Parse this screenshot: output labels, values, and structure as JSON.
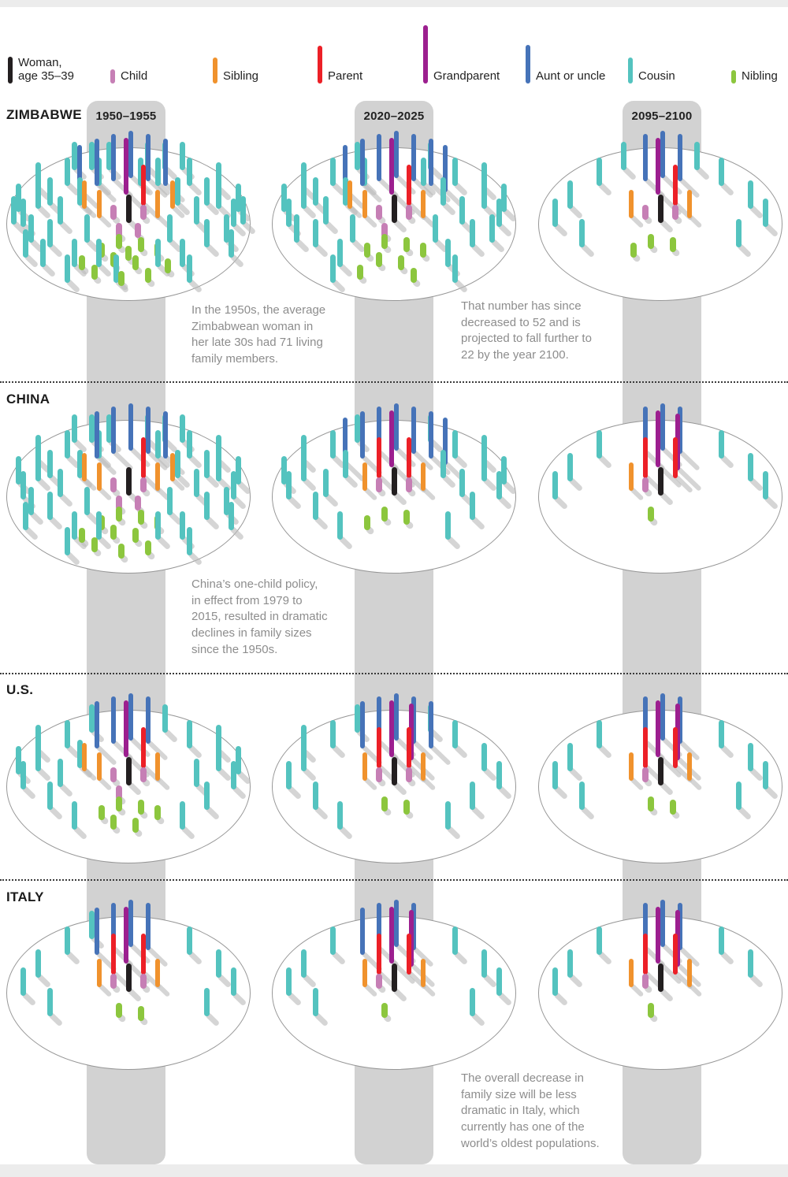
{
  "chart_data": {
    "type": "table",
    "description": "Pictogram of living family members of an average woman aged 35-39, by relation type, for four countries across three time periods",
    "periods": [
      "1950–1955",
      "2020–2025",
      "2095–2100"
    ],
    "legend": [
      {
        "id": "woman",
        "label": "Woman,\nage 35–39",
        "color": "#231f20"
      },
      {
        "id": "child",
        "label": "Child",
        "color": "#c67fb5"
      },
      {
        "id": "sibling",
        "label": "Sibling",
        "color": "#f0922d"
      },
      {
        "id": "parent",
        "label": "Parent",
        "color": "#ec2027"
      },
      {
        "id": "grandparent",
        "label": "Grandparent",
        "color": "#9c1f8f"
      },
      {
        "id": "aunt_uncle",
        "label": "Aunt or uncle",
        "color": "#4673b8"
      },
      {
        "id": "cousin",
        "label": "Cousin",
        "color": "#54c3bf"
      },
      {
        "id": "nibling",
        "label": "Nibling",
        "color": "#8cc63e"
      }
    ],
    "rows": [
      {
        "country": "ZIMBABWE",
        "panels": [
          {
            "period": "1950–1955",
            "total_family_members": 71,
            "counts": {
              "woman": 1,
              "child": 4,
              "sibling": 4,
              "parent": 1,
              "grandparent": 1,
              "aunt_uncle": 6,
              "cousin": 43,
              "nibling": 12
            }
          },
          {
            "period": "2020–2025",
            "total_family_members": 52,
            "counts": {
              "woman": 1,
              "child": 3,
              "sibling": 3,
              "parent": 1,
              "grandparent": 1,
              "aunt_uncle": 7,
              "cousin": 29,
              "nibling": 8
            }
          },
          {
            "period": "2095–2100",
            "total_family_members": 22,
            "counts": {
              "woman": 1,
              "child": 2,
              "sibling": 2,
              "parent": 1,
              "grandparent": 1,
              "aunt_uncle": 3,
              "cousin": 10,
              "nibling": 3
            }
          }
        ]
      },
      {
        "country": "CHINA",
        "panels": [
          {
            "period": "1950–1955",
            "total_family_members": 62,
            "counts": {
              "woman": 1,
              "child": 4,
              "sibling": 4,
              "parent": 1,
              "grandparent": 0,
              "aunt_uncle": 5,
              "cousin": 38,
              "nibling": 10
            }
          },
          {
            "period": "2020–2025",
            "total_family_members": 37,
            "counts": {
              "woman": 1,
              "child": 2,
              "sibling": 2,
              "parent": 2,
              "grandparent": 1,
              "aunt_uncle": 7,
              "cousin": 20,
              "nibling": 3
            }
          },
          {
            "period": "2095–2100",
            "total_family_members": 16,
            "counts": {
              "woman": 1,
              "child": 1,
              "sibling": 1,
              "parent": 2,
              "grandparent": 2,
              "aunt_uncle": 3,
              "cousin": 6,
              "nibling": 1
            }
          }
        ]
      },
      {
        "country": "U.S.",
        "panels": [
          {
            "period": "1950–1955",
            "total_family_members": 37,
            "counts": {
              "woman": 1,
              "child": 3,
              "sibling": 3,
              "parent": 1,
              "grandparent": 1,
              "aunt_uncle": 4,
              "cousin": 19,
              "nibling": 6
            }
          },
          {
            "period": "2020–2025",
            "total_family_members": 28,
            "counts": {
              "woman": 1,
              "child": 2,
              "sibling": 2,
              "parent": 2,
              "grandparent": 2,
              "aunt_uncle": 5,
              "cousin": 13,
              "nibling": 2
            }
          },
          {
            "period": "2095–2100",
            "total_family_members": 20,
            "counts": {
              "woman": 1,
              "child": 1,
              "sibling": 2,
              "parent": 2,
              "grandparent": 2,
              "aunt_uncle": 3,
              "cousin": 8,
              "nibling": 2
            }
          }
        ]
      },
      {
        "country": "ITALY",
        "panels": [
          {
            "period": "1950–1955",
            "total_family_members": 22,
            "counts": {
              "woman": 1,
              "child": 2,
              "sibling": 2,
              "parent": 2,
              "grandparent": 1,
              "aunt_uncle": 4,
              "cousin": 9,
              "nibling": 2
            }
          },
          {
            "period": "2020–2025",
            "total_family_members": 20,
            "counts": {
              "woman": 1,
              "child": 1,
              "sibling": 2,
              "parent": 2,
              "grandparent": 2,
              "aunt_uncle": 4,
              "cousin": 8,
              "nibling": 1
            }
          },
          {
            "period": "2095–2100",
            "total_family_members": 16,
            "counts": {
              "woman": 1,
              "child": 1,
              "sibling": 2,
              "parent": 2,
              "grandparent": 2,
              "aunt_uncle": 3,
              "cousin": 5,
              "nibling": 1
            }
          }
        ]
      }
    ],
    "annotations": {
      "zimbabwe_1950s": "In the 1950s, the average\nZimbabwean woman in\nher late 30s had 71 living\nfamily members.",
      "zimbabwe_future": "That number has since\ndecreased to 52 and is\nprojected to fall further to\n22 by the year 2100.",
      "china": "China’s one-child policy,\nin effect from 1979 to\n2015, resulted in dramatic\ndeclines in family sizes\nsince the 1950s.",
      "italy": "The overall decrease in\nfamily size will be less\ndramatic in Italy, which\ncurrently has one of the\nworld’s oldest populations."
    },
    "colors": {
      "band": "#d2d2d2",
      "peg_shadow": "#bcbcbc",
      "ellipse_stroke": "#979797",
      "annotation_text": "#8d8d8d",
      "label_text": "#1c1c1c",
      "page_strip": "#ececec"
    }
  }
}
